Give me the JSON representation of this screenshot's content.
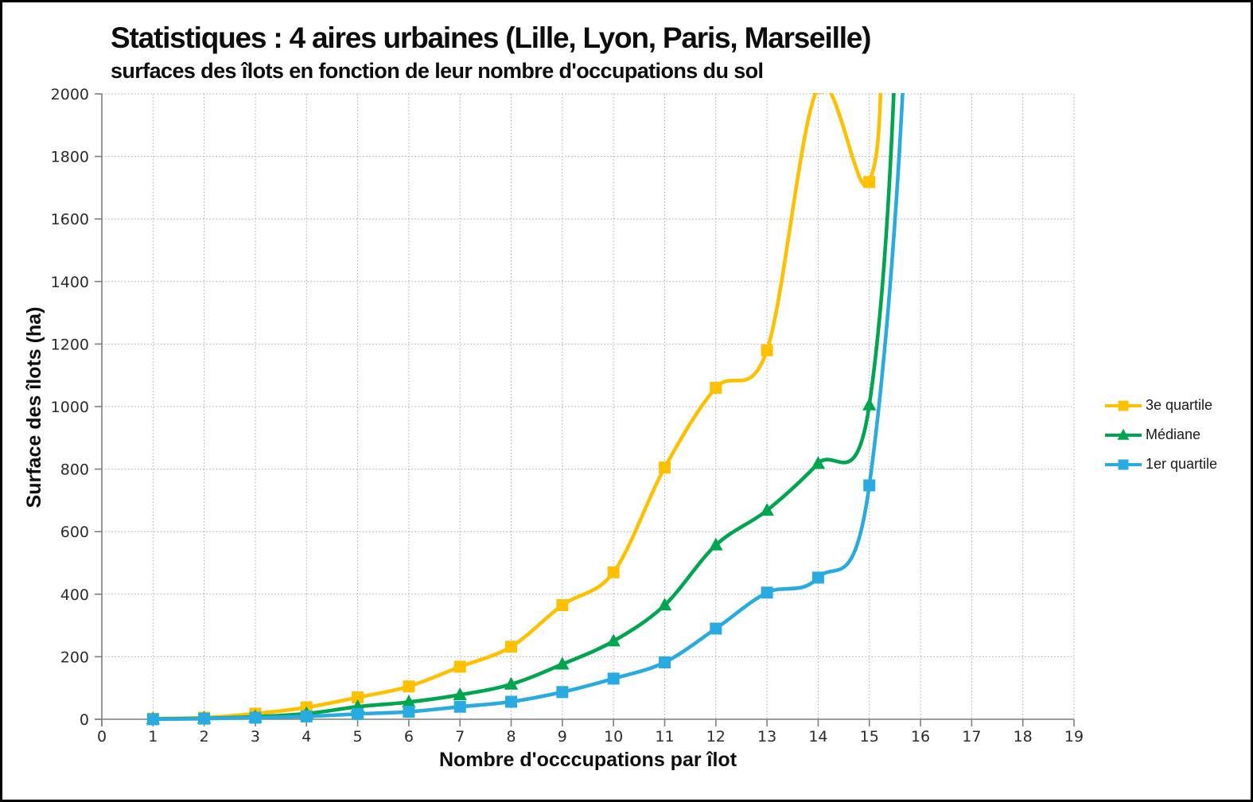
{
  "chart_data": {
    "type": "line",
    "title": "Statistiques : 4 aires urbaines (Lille, Lyon, Paris, Marseille)",
    "subtitle": "surfaces des îlots en fonction de leur nombre d'occupations du sol",
    "xlabel": "Nombre d'occcupations par îlot",
    "ylabel": "Surface des îlots (ha)",
    "xlim": [
      0,
      19
    ],
    "ylim": [
      0,
      2000
    ],
    "x_ticks": [
      0,
      1,
      2,
      3,
      4,
      5,
      6,
      7,
      8,
      9,
      10,
      11,
      12,
      13,
      14,
      15,
      16,
      17,
      18,
      19
    ],
    "y_ticks": [
      0,
      200,
      400,
      600,
      800,
      1000,
      1200,
      1400,
      1600,
      1800,
      2000
    ],
    "grid": "dotted",
    "legend_position": "right",
    "x": [
      1,
      2,
      3,
      4,
      5,
      6,
      7,
      8,
      9,
      10,
      11,
      12,
      13,
      14,
      15
    ],
    "series": [
      {
        "name": "3e quartile",
        "color": "#FFC000",
        "marker": "square",
        "values": [
          2,
          5,
          18,
          38,
          70,
          105,
          168,
          232,
          365,
          470,
          805,
          1060,
          1180,
          2020,
          1718
        ],
        "offchart_exit_guide": [
          [
            15.3,
            2600
          ],
          [
            15.5,
            6000
          ]
        ]
      },
      {
        "name": "Médiane",
        "color": "#00A550",
        "marker": "triangle",
        "values": [
          1,
          3,
          8,
          18,
          40,
          55,
          78,
          112,
          176,
          250,
          365,
          557,
          668,
          818,
          1005
        ],
        "offchart_exit_guide": [
          [
            15.6,
            2600
          ],
          [
            15.8,
            6000
          ]
        ]
      },
      {
        "name": "1er quartile",
        "color": "#29ABE2",
        "marker": "square",
        "values": [
          0,
          2,
          5,
          9,
          17,
          24,
          40,
          56,
          87,
          130,
          182,
          290,
          405,
          453,
          748
        ],
        "offchart_exit_guide": [
          [
            15.8,
            2600
          ],
          [
            16.0,
            6000
          ]
        ]
      }
    ]
  }
}
